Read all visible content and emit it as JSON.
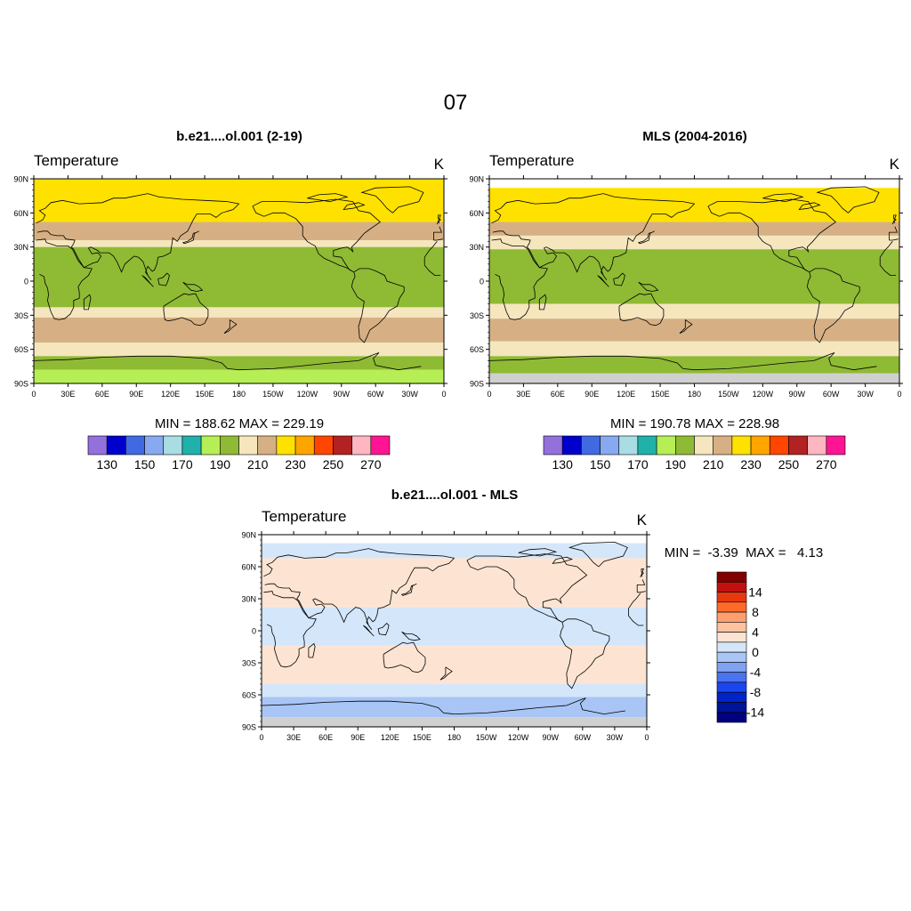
{
  "page_title": "07",
  "chart_data": [
    {
      "type": "heatmap",
      "title": "b.e21....ol.001 (2-19)",
      "variable": "Temperature",
      "units": "K",
      "stats": "MIN = 188.62  MAX = 229.19",
      "lat_ticks": [
        "90N",
        "60N",
        "30N",
        "0",
        "30S",
        "60S",
        "90S"
      ],
      "lon_ticks": [
        "0",
        "30E",
        "60E",
        "90E",
        "120E",
        "150E",
        "180",
        "150W",
        "120W",
        "90W",
        "60W",
        "30W",
        "0"
      ],
      "bands": [
        {
          "lat_from": 90,
          "lat_to": 52,
          "color": "#ffe100"
        },
        {
          "lat_from": 52,
          "lat_to": 36,
          "color": "#d6b084"
        },
        {
          "lat_from": 36,
          "lat_to": 30,
          "color": "#f5e6be"
        },
        {
          "lat_from": 30,
          "lat_to": -23,
          "color": "#8fba34"
        },
        {
          "lat_from": -23,
          "lat_to": -32,
          "color": "#f5e6be"
        },
        {
          "lat_from": -32,
          "lat_to": -54,
          "color": "#d6b084"
        },
        {
          "lat_from": -54,
          "lat_to": -66,
          "color": "#f5e6be"
        },
        {
          "lat_from": -66,
          "lat_to": -78,
          "color": "#8fba34"
        },
        {
          "lat_from": -78,
          "lat_to": -90,
          "color": "#b6ee55"
        }
      ],
      "colorbar": {
        "colors": [
          "#9370db",
          "#0000cd",
          "#4169e1",
          "#87a9f0",
          "#a9dde4",
          "#20b2aa",
          "#b6ee55",
          "#8fba34",
          "#f5e6be",
          "#d6b084",
          "#ffe100",
          "#ffa500",
          "#ff4500",
          "#b22222",
          "#ffb6c1",
          "#ff1493"
        ],
        "labels": [
          "130",
          "150",
          "170",
          "190",
          "210",
          "230",
          "250",
          "270"
        ]
      }
    },
    {
      "type": "heatmap",
      "title": "MLS (2004-2016)",
      "variable": "Temperature",
      "units": "K",
      "stats": "MIN = 190.78  MAX = 228.98",
      "lat_ticks": [
        "90N",
        "60N",
        "30N",
        "0",
        "30S",
        "60S",
        "90S"
      ],
      "lon_ticks": [
        "0",
        "30E",
        "60E",
        "90E",
        "120E",
        "150E",
        "180",
        "150W",
        "120W",
        "90W",
        "60W",
        "30W",
        "0"
      ],
      "bands": [
        {
          "lat_from": 90,
          "lat_to": 82,
          "color": "#ffffff"
        },
        {
          "lat_from": 82,
          "lat_to": 52,
          "color": "#ffe100"
        },
        {
          "lat_from": 52,
          "lat_to": 40,
          "color": "#d6b084"
        },
        {
          "lat_from": 40,
          "lat_to": 28,
          "color": "#f5e6be"
        },
        {
          "lat_from": 28,
          "lat_to": -20,
          "color": "#8fba34"
        },
        {
          "lat_from": -20,
          "lat_to": -33,
          "color": "#f5e6be"
        },
        {
          "lat_from": -33,
          "lat_to": -53,
          "color": "#d6b084"
        },
        {
          "lat_from": -53,
          "lat_to": -66,
          "color": "#f5e6be"
        },
        {
          "lat_from": -66,
          "lat_to": -81,
          "color": "#8fba34"
        },
        {
          "lat_from": -81,
          "lat_to": -90,
          "color": "#d0d0d0"
        }
      ],
      "colorbar": {
        "colors": [
          "#9370db",
          "#0000cd",
          "#4169e1",
          "#87a9f0",
          "#a9dde4",
          "#20b2aa",
          "#b6ee55",
          "#8fba34",
          "#f5e6be",
          "#d6b084",
          "#ffe100",
          "#ffa500",
          "#ff4500",
          "#b22222",
          "#ffb6c1",
          "#ff1493"
        ],
        "labels": [
          "130",
          "150",
          "170",
          "190",
          "210",
          "230",
          "250",
          "270"
        ]
      }
    },
    {
      "type": "heatmap",
      "title": "b.e21....ol.001 - MLS",
      "variable": "Temperature",
      "units": "K",
      "stats": "MIN =  -3.39  MAX =   4.13",
      "lat_ticks": [
        "90N",
        "60N",
        "30N",
        "0",
        "30S",
        "60S",
        "90S"
      ],
      "lon_ticks": [
        "0",
        "30E",
        "60E",
        "90E",
        "120E",
        "150E",
        "180",
        "150W",
        "120W",
        "90W",
        "60W",
        "30W",
        "0"
      ],
      "bands": [
        {
          "lat_from": 90,
          "lat_to": 82,
          "color": "#ffffff"
        },
        {
          "lat_from": 82,
          "lat_to": 68,
          "color": "#d4e6fa"
        },
        {
          "lat_from": 68,
          "lat_to": 42,
          "color": "#fde4d2"
        },
        {
          "lat_from": 42,
          "lat_to": 22,
          "color": "#fde4d2"
        },
        {
          "lat_from": 22,
          "lat_to": -14,
          "color": "#d4e6fa"
        },
        {
          "lat_from": -14,
          "lat_to": -50,
          "color": "#fde4d2"
        },
        {
          "lat_from": -50,
          "lat_to": -62,
          "color": "#d4e6fa"
        },
        {
          "lat_from": -62,
          "lat_to": -81,
          "color": "#a9c5f5"
        },
        {
          "lat_from": -81,
          "lat_to": -90,
          "color": "#d0d0d0"
        }
      ],
      "colorbar": {
        "colors": [
          "#800000",
          "#c0110f",
          "#e8380f",
          "#ff6a2a",
          "#ff9e6e",
          "#fdc2a0",
          "#fde4d2",
          "#d4e6fa",
          "#a9c5f5",
          "#7fa3f0",
          "#4a73f0",
          "#1a46f0",
          "#0024c8",
          "#00139a",
          "#000080"
        ],
        "labels": [
          "14",
          "8",
          "4",
          "0",
          "-4",
          "-8",
          "-14"
        ]
      }
    }
  ]
}
